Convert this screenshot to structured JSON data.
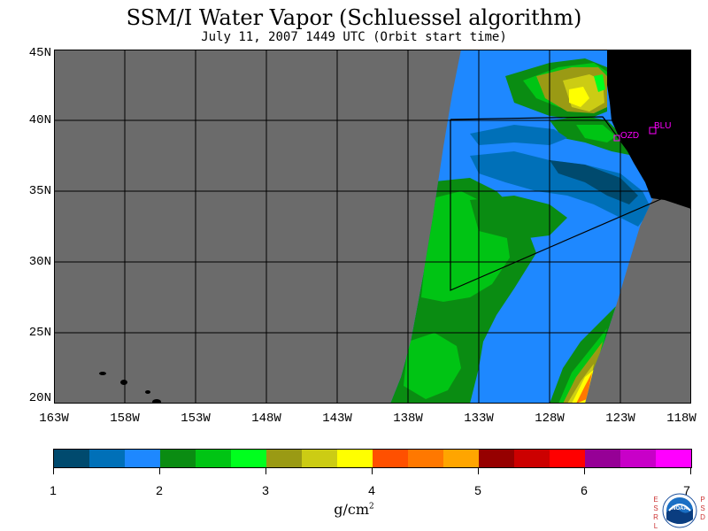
{
  "title": "SSM/I Water Vapor (Schluessel algorithm)",
  "subtitle": "July 11, 2007  1449 UTC  (Orbit start time)",
  "map": {
    "lat_labels": [
      "45N",
      "40N",
      "35N",
      "30N",
      "25N",
      "20N"
    ],
    "lon_labels": [
      "163W",
      "158W",
      "153W",
      "148W",
      "143W",
      "138W",
      "133W",
      "128W",
      "123W",
      "118W"
    ],
    "lat_range": [
      20,
      45
    ],
    "lon_range": [
      -163,
      -118
    ],
    "stations": [
      "OZD",
      "BLU"
    ],
    "colors": {
      "land": "#000000",
      "no_data": "#6b6b6b",
      "station": "#ff00ff"
    }
  },
  "colorbar": {
    "ticks": [
      "1",
      "2",
      "3",
      "4",
      "5",
      "6",
      "7"
    ],
    "unit": "g/cm",
    "unit_exp": "2",
    "colors": [
      "#004a6e",
      "#0070b8",
      "#1e88ff",
      "#0a8c12",
      "#00c414",
      "#00ff1e",
      "#9a9a14",
      "#cccc14",
      "#ffff00",
      "#ff5000",
      "#ff7800",
      "#ffa500",
      "#960000",
      "#cc0000",
      "#ff0000",
      "#960096",
      "#c800c8",
      "#ff00ff"
    ]
  },
  "logo": {
    "left_text": "ESRL",
    "right_text": "PSD",
    "center_text": "NOAA"
  }
}
